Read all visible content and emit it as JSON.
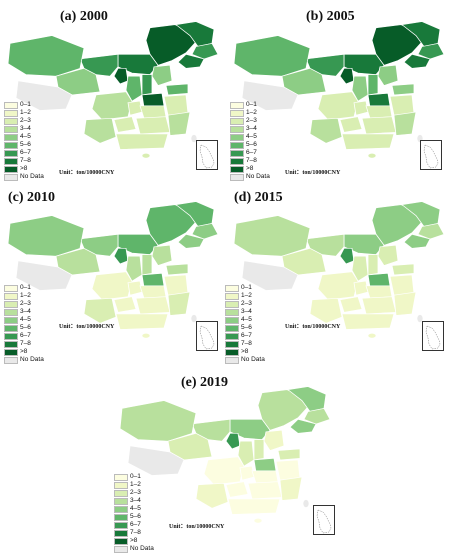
{
  "colors": {
    "no_data": "#e9e9e9",
    "scale": [
      "#fcfde0",
      "#f0f7c7",
      "#d9eeb2",
      "#b8e09d",
      "#8dcd85",
      "#5fb56a",
      "#379852",
      "#18793a",
      "#075c28"
    ]
  },
  "legend": {
    "items": [
      "0–1",
      "1–2",
      "2–3",
      "3–4",
      "4–5",
      "5–6",
      "6–7",
      "7–8",
      ">8",
      "No Data"
    ]
  },
  "unit_label": "Unit：ton/10000CNY",
  "panels": [
    {
      "id": "a",
      "title": "(a) 2000",
      "levels": [
        8,
        7,
        6,
        7,
        7,
        6,
        8,
        5,
        4,
        3,
        5,
        6,
        4,
        5,
        8,
        3,
        2,
        2,
        2,
        3,
        2,
        2,
        3,
        2
      ]
    },
    {
      "id": "b",
      "title": "(b) 2005",
      "levels": [
        8,
        7,
        6,
        7,
        7,
        6,
        8,
        5,
        4,
        3,
        4,
        5,
        4,
        4,
        7,
        2,
        2,
        2,
        2,
        3,
        2,
        2,
        3,
        2
      ]
    },
    {
      "id": "c",
      "title": "(c) 2010",
      "levels": [
        5,
        5,
        4,
        4,
        5,
        4,
        6,
        4,
        3,
        2,
        3,
        3,
        3,
        3,
        5,
        1,
        1,
        1,
        1,
        2,
        1,
        1,
        2,
        1
      ]
    },
    {
      "id": "d",
      "title": "(d) 2015",
      "levels": [
        4,
        4,
        3,
        4,
        4,
        3,
        6,
        3,
        2,
        2,
        2,
        2,
        2,
        2,
        5,
        1,
        1,
        1,
        1,
        1,
        1,
        1,
        1,
        1
      ]
    },
    {
      "id": "e",
      "title": "(e) 2019",
      "levels": [
        3,
        4,
        3,
        4,
        4,
        3,
        6,
        3,
        2,
        1,
        2,
        2,
        1,
        2,
        4,
        0,
        0,
        0,
        0,
        1,
        0,
        0,
        1,
        0
      ]
    }
  ]
}
